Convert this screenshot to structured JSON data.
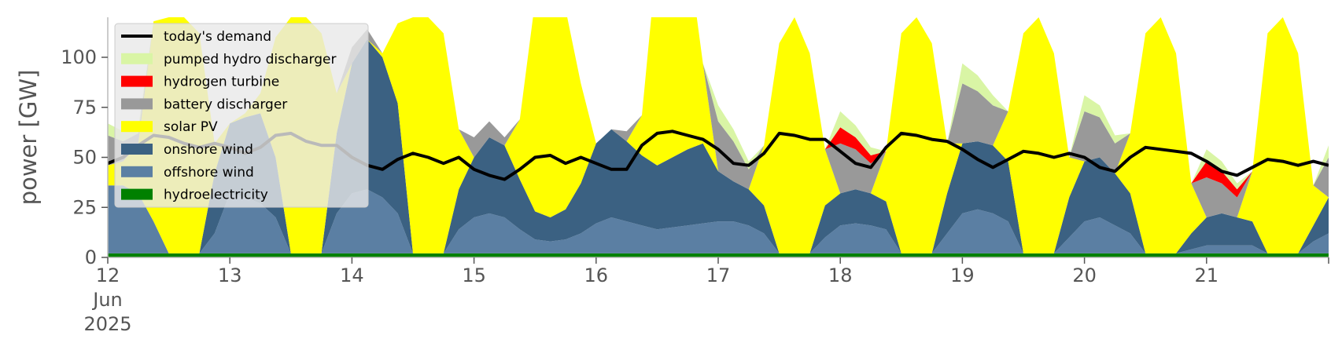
{
  "chart_data": {
    "type": "area",
    "title": "",
    "xlabel": "",
    "ylabel": "power [GW]",
    "xlim": [
      "2025-06-12",
      "2025-06-22"
    ],
    "ylim": [
      0,
      120
    ],
    "yticks": [
      0,
      25,
      50,
      75,
      100
    ],
    "xticks": [
      {
        "date": "2025-06-12",
        "label": [
          "12",
          "Jun",
          "2025"
        ]
      },
      {
        "date": "2025-06-13",
        "label": [
          "13"
        ]
      },
      {
        "date": "2025-06-14",
        "label": [
          "14"
        ]
      },
      {
        "date": "2025-06-15",
        "label": [
          "15"
        ]
      },
      {
        "date": "2025-06-16",
        "label": [
          "16"
        ]
      },
      {
        "date": "2025-06-17",
        "label": [
          "17"
        ]
      },
      {
        "date": "2025-06-18",
        "label": [
          "18"
        ]
      },
      {
        "date": "2025-06-19",
        "label": [
          "19"
        ]
      },
      {
        "date": "2025-06-20",
        "label": [
          "20"
        ]
      },
      {
        "date": "2025-06-21",
        "label": [
          "21"
        ]
      }
    ],
    "legend": {
      "placement": "upper left"
    },
    "x": [
      "2025-06-12T00:00",
      "2025-06-12T03:00",
      "2025-06-12T06:00",
      "2025-06-12T09:00",
      "2025-06-12T12:00",
      "2025-06-12T15:00",
      "2025-06-12T18:00",
      "2025-06-12T21:00",
      "2025-06-13T00:00",
      "2025-06-13T03:00",
      "2025-06-13T06:00",
      "2025-06-13T09:00",
      "2025-06-13T12:00",
      "2025-06-13T15:00",
      "2025-06-13T18:00",
      "2025-06-13T21:00",
      "2025-06-14T00:00",
      "2025-06-14T03:00",
      "2025-06-14T06:00",
      "2025-06-14T09:00",
      "2025-06-14T12:00",
      "2025-06-14T15:00",
      "2025-06-14T18:00",
      "2025-06-14T21:00",
      "2025-06-15T00:00",
      "2025-06-15T03:00",
      "2025-06-15T06:00",
      "2025-06-15T09:00",
      "2025-06-15T12:00",
      "2025-06-15T15:00",
      "2025-06-15T18:00",
      "2025-06-15T21:00",
      "2025-06-16T00:00",
      "2025-06-16T03:00",
      "2025-06-16T06:00",
      "2025-06-16T09:00",
      "2025-06-16T12:00",
      "2025-06-16T15:00",
      "2025-06-16T18:00",
      "2025-06-16T21:00",
      "2025-06-17T00:00",
      "2025-06-17T03:00",
      "2025-06-17T06:00",
      "2025-06-17T09:00",
      "2025-06-17T12:00",
      "2025-06-17T15:00",
      "2025-06-17T18:00",
      "2025-06-17T21:00",
      "2025-06-18T00:00",
      "2025-06-18T03:00",
      "2025-06-18T06:00",
      "2025-06-18T09:00",
      "2025-06-18T12:00",
      "2025-06-18T15:00",
      "2025-06-18T18:00",
      "2025-06-18T21:00",
      "2025-06-19T00:00",
      "2025-06-19T03:00",
      "2025-06-19T06:00",
      "2025-06-19T09:00",
      "2025-06-19T12:00",
      "2025-06-19T15:00",
      "2025-06-19T18:00",
      "2025-06-19T21:00",
      "2025-06-20T00:00",
      "2025-06-20T03:00",
      "2025-06-20T06:00",
      "2025-06-20T09:00",
      "2025-06-20T12:00",
      "2025-06-20T15:00",
      "2025-06-20T18:00",
      "2025-06-20T21:00",
      "2025-06-21T00:00",
      "2025-06-21T03:00",
      "2025-06-21T06:00",
      "2025-06-21T09:00",
      "2025-06-21T12:00",
      "2025-06-21T15:00",
      "2025-06-21T18:00",
      "2025-06-21T21:00",
      "2025-06-22T00:00"
    ],
    "series": [
      {
        "name": "hydroelectricity",
        "color": "#008000",
        "values": [
          2,
          2,
          2,
          2,
          2,
          2,
          2,
          2,
          2,
          2,
          2,
          2,
          2,
          2,
          2,
          2,
          2,
          2,
          2,
          2,
          2,
          2,
          2,
          2,
          2,
          2,
          2,
          2,
          2,
          2,
          2,
          2,
          2,
          2,
          2,
          2,
          2,
          2,
          2,
          2,
          2,
          2,
          2,
          2,
          2,
          2,
          2,
          2,
          2,
          2,
          2,
          2,
          2,
          2,
          2,
          2,
          2,
          2,
          2,
          2,
          2,
          2,
          2,
          2,
          2,
          2,
          2,
          2,
          2,
          2,
          2,
          2,
          2,
          2,
          2,
          2,
          2,
          2,
          2,
          2,
          2
        ]
      },
      {
        "name": "offshore wind",
        "color": "#5b7fa3",
        "values": [
          34,
          34,
          30,
          16,
          0,
          0,
          0,
          10,
          30,
          28,
          25,
          18,
          0,
          0,
          0,
          20,
          30,
          32,
          28,
          20,
          0,
          0,
          0,
          12,
          18,
          20,
          18,
          12,
          7,
          6,
          7,
          10,
          15,
          18,
          16,
          14,
          12,
          13,
          14,
          15,
          16,
          16,
          14,
          10,
          0,
          0,
          0,
          8,
          14,
          15,
          14,
          12,
          0,
          0,
          0,
          10,
          20,
          22,
          20,
          16,
          0,
          0,
          0,
          8,
          16,
          18,
          14,
          10,
          0,
          0,
          0,
          2,
          4,
          4,
          4,
          4,
          0,
          0,
          0,
          6,
          10
        ]
      },
      {
        "name": "onshore wind",
        "color": "#3b6182",
        "values": [
          0,
          0,
          0,
          0,
          0,
          0,
          0,
          30,
          35,
          40,
          45,
          30,
          0,
          0,
          0,
          40,
          65,
          75,
          70,
          55,
          0,
          0,
          0,
          20,
          30,
          38,
          36,
          25,
          14,
          12,
          15,
          25,
          40,
          44,
          40,
          35,
          32,
          35,
          38,
          40,
          25,
          20,
          18,
          14,
          0,
          0,
          0,
          16,
          16,
          17,
          16,
          14,
          0,
          0,
          0,
          20,
          35,
          34,
          34,
          30,
          0,
          0,
          0,
          20,
          30,
          30,
          26,
          20,
          0,
          0,
          0,
          8,
          14,
          16,
          14,
          12,
          0,
          0,
          0,
          8,
          18
        ]
      },
      {
        "name": "solar PV",
        "color": "#ffff00",
        "values": [
          10,
          12,
          25,
          100,
          118,
          118,
          110,
          15,
          0,
          2,
          10,
          60,
          118,
          118,
          110,
          20,
          0,
          0,
          2,
          40,
          118,
          118,
          110,
          30,
          0,
          0,
          0,
          30,
          105,
          118,
          100,
          50,
          0,
          0,
          0,
          20,
          105,
          118,
          100,
          40,
          0,
          0,
          0,
          30,
          105,
          118,
          100,
          28,
          0,
          0,
          0,
          25,
          110,
          118,
          105,
          25,
          0,
          0,
          0,
          25,
          110,
          118,
          100,
          20,
          0,
          0,
          0,
          30,
          110,
          118,
          100,
          25,
          0,
          0,
          0,
          25,
          110,
          118,
          100,
          20,
          0
        ]
      },
      {
        "name": "battery discharger",
        "color": "#999999",
        "values": [
          15,
          10,
          5,
          0,
          0,
          0,
          0,
          0,
          0,
          0,
          0,
          0,
          0,
          0,
          0,
          0,
          8,
          5,
          0,
          0,
          0,
          0,
          0,
          0,
          10,
          8,
          4,
          0,
          0,
          0,
          0,
          0,
          0,
          0,
          5,
          0,
          0,
          0,
          0,
          0,
          25,
          20,
          10,
          0,
          0,
          0,
          0,
          0,
          25,
          20,
          15,
          0,
          0,
          0,
          0,
          0,
          30,
          25,
          20,
          0,
          0,
          0,
          0,
          0,
          25,
          20,
          15,
          0,
          0,
          0,
          0,
          0,
          20,
          15,
          10,
          0,
          0,
          0,
          0,
          0,
          20
        ]
      },
      {
        "name": "hydrogen turbine",
        "color": "#ff0000",
        "values": [
          0,
          0,
          0,
          0,
          0,
          0,
          0,
          0,
          0,
          0,
          0,
          0,
          0,
          0,
          0,
          0,
          0,
          0,
          0,
          0,
          0,
          0,
          0,
          0,
          0,
          0,
          0,
          0,
          0,
          0,
          0,
          0,
          0,
          0,
          0,
          0,
          0,
          0,
          0,
          0,
          0,
          0,
          0,
          0,
          0,
          0,
          0,
          0,
          8,
          6,
          4,
          0,
          0,
          0,
          0,
          0,
          0,
          0,
          0,
          0,
          0,
          0,
          0,
          0,
          0,
          0,
          0,
          0,
          0,
          0,
          0,
          0,
          8,
          6,
          4,
          0,
          0,
          0,
          0,
          0,
          0
        ]
      },
      {
        "name": "pumped hydro discharger",
        "color": "#d9f5a5",
        "values": [
          6,
          5,
          3,
          0,
          0,
          0,
          0,
          0,
          0,
          0,
          0,
          0,
          0,
          0,
          0,
          0,
          0,
          0,
          0,
          0,
          0,
          0,
          0,
          0,
          0,
          0,
          0,
          0,
          0,
          0,
          0,
          0,
          0,
          0,
          0,
          0,
          0,
          0,
          0,
          0,
          8,
          6,
          4,
          0,
          0,
          0,
          0,
          0,
          8,
          6,
          4,
          0,
          0,
          0,
          0,
          0,
          10,
          8,
          5,
          0,
          0,
          0,
          0,
          0,
          8,
          6,
          4,
          0,
          0,
          0,
          0,
          0,
          6,
          5,
          3,
          0,
          0,
          0,
          0,
          0,
          6
        ]
      }
    ],
    "demand": {
      "name": "today's demand",
      "color": "#000000",
      "values": [
        47,
        50,
        56,
        61,
        60,
        57,
        55,
        57,
        55,
        52,
        55,
        61,
        62,
        58,
        56,
        56,
        50,
        46,
        44,
        49,
        52,
        50,
        47,
        50,
        44,
        41,
        39,
        44,
        50,
        51,
        47,
        50,
        47,
        44,
        44,
        56,
        62,
        63,
        61,
        59,
        54,
        47,
        46,
        52,
        62,
        61,
        59,
        59,
        53,
        47,
        45,
        55,
        62,
        61,
        59,
        58,
        54,
        49,
        45,
        49,
        53,
        52,
        50,
        52,
        50,
        45,
        43,
        50,
        55,
        54,
        53,
        52,
        48,
        43,
        41,
        45,
        49,
        48,
        46,
        48,
        46
      ]
    }
  }
}
